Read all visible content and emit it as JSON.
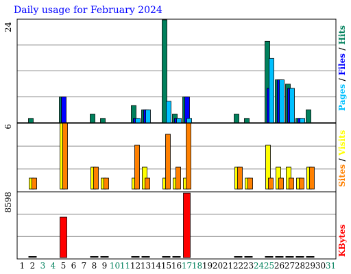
{
  "title": "Daily usage for February 2024",
  "colors": {
    "title": "#0000ff",
    "hits": "#00805c",
    "files": "#0000ff",
    "pages": "#00c0ff",
    "visits": "#ffff00",
    "sites": "#ff8000",
    "kbytes": "#ff0000",
    "weekend": "#00805c",
    "weekday": "#000000",
    "grid": "#808080"
  },
  "legend": {
    "top": {
      "hits": "Hits",
      "files": "Files",
      "pages": "Pages",
      "sep": "/"
    },
    "middle": {
      "visits": "Visits",
      "sites": "Sites",
      "sep": "/"
    },
    "bottom": {
      "kbytes": "KBytes"
    }
  },
  "chart_data": [
    {
      "type": "bar",
      "panel": "hits-files-pages",
      "y_axis_label": "24",
      "ylim": [
        0,
        24
      ],
      "categories": [
        1,
        2,
        3,
        4,
        5,
        6,
        7,
        8,
        9,
        10,
        11,
        12,
        13,
        14,
        15,
        16,
        17,
        18,
        19,
        20,
        21,
        22,
        23,
        24,
        25,
        26,
        27,
        28,
        29,
        30,
        31
      ],
      "series": [
        {
          "name": "Hits",
          "values": [
            0,
            1,
            0,
            0,
            6,
            0,
            0,
            2,
            1,
            0,
            0,
            4,
            3,
            0,
            24,
            2,
            6,
            0,
            0,
            0,
            0,
            2,
            1,
            0,
            19,
            10,
            9,
            1,
            3,
            0,
            0
          ]
        },
        {
          "name": "Files",
          "values": [
            0,
            0,
            0,
            0,
            6,
            0,
            0,
            0,
            0,
            0,
            0,
            1,
            3,
            0,
            0,
            1,
            6,
            0,
            0,
            0,
            0,
            0,
            0,
            0,
            8,
            10,
            8,
            1,
            0,
            0,
            0
          ]
        },
        {
          "name": "Pages",
          "values": [
            0,
            0,
            0,
            0,
            0,
            0,
            0,
            0,
            0,
            0,
            0,
            1,
            3,
            0,
            5,
            1,
            1,
            0,
            0,
            0,
            0,
            0,
            0,
            0,
            15,
            10,
            8,
            1,
            0,
            0,
            0
          ]
        }
      ]
    },
    {
      "type": "bar",
      "panel": "visits-sites",
      "y_axis_label": "6",
      "ylim": [
        0,
        6
      ],
      "categories": [
        1,
        2,
        3,
        4,
        5,
        6,
        7,
        8,
        9,
        10,
        11,
        12,
        13,
        14,
        15,
        16,
        17,
        18,
        19,
        20,
        21,
        22,
        23,
        24,
        25,
        26,
        27,
        28,
        29,
        30,
        31
      ],
      "series": [
        {
          "name": "Visits",
          "values": [
            0,
            1,
            0,
            0,
            6,
            0,
            0,
            2,
            1,
            0,
            0,
            1,
            2,
            0,
            1,
            1,
            1,
            0,
            0,
            0,
            0,
            2,
            1,
            0,
            4,
            2,
            2,
            1,
            2,
            0,
            0
          ]
        },
        {
          "name": "Sites",
          "values": [
            0,
            1,
            0,
            0,
            6,
            0,
            0,
            2,
            1,
            0,
            0,
            4,
            1,
            0,
            5,
            2,
            6,
            0,
            0,
            0,
            0,
            2,
            1,
            0,
            1,
            1,
            1,
            1,
            2,
            0,
            0
          ]
        }
      ]
    },
    {
      "type": "bar",
      "panel": "kbytes",
      "y_axis_label": "8598",
      "ylim": [
        0,
        8598
      ],
      "categories": [
        1,
        2,
        3,
        4,
        5,
        6,
        7,
        8,
        9,
        10,
        11,
        12,
        13,
        14,
        15,
        16,
        17,
        18,
        19,
        20,
        21,
        22,
        23,
        24,
        25,
        26,
        27,
        28,
        29,
        30,
        31
      ],
      "series": [
        {
          "name": "KBytes",
          "values": [
            0,
            5,
            0,
            0,
            5400,
            0,
            0,
            5,
            5,
            0,
            0,
            5,
            5,
            0,
            5,
            5,
            8598,
            0,
            0,
            0,
            0,
            5,
            5,
            0,
            5,
            5,
            5,
            5,
            5,
            0,
            0
          ]
        }
      ]
    }
  ],
  "x_axis": {
    "days": [
      "1",
      "2",
      "3",
      "4",
      "5",
      "6",
      "7",
      "8",
      "9",
      "10",
      "11",
      "12",
      "13",
      "14",
      "15",
      "16",
      "17",
      "18",
      "19",
      "20",
      "21",
      "22",
      "23",
      "24",
      "25",
      "26",
      "27",
      "28",
      "29",
      "30",
      "31"
    ],
    "weekend": [
      3,
      4,
      10,
      11,
      17,
      18,
      24,
      25,
      31
    ]
  }
}
